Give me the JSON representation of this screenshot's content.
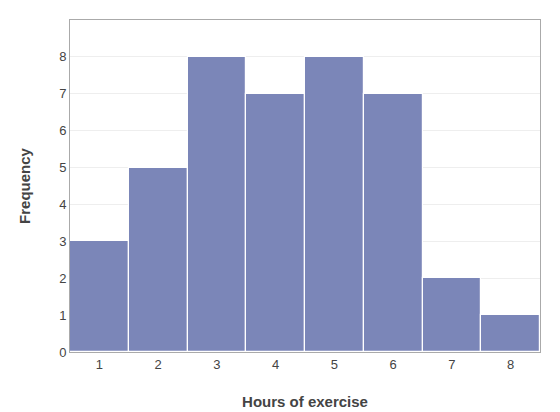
{
  "chart_data": {
    "type": "bar",
    "x": [
      1,
      2,
      3,
      4,
      5,
      6,
      7,
      8
    ],
    "values": [
      3,
      5,
      8,
      7,
      8,
      7,
      2,
      1
    ],
    "color": "#7b86b8",
    "xlabel": "Hours of exercise",
    "ylabel": "Frequency",
    "xlim": [
      0.5,
      8.5
    ],
    "ylim": [
      0,
      9
    ],
    "xticks": [
      1,
      2,
      3,
      4,
      5,
      6,
      7,
      8
    ],
    "yticks": [
      0,
      1,
      2,
      3,
      4,
      5,
      6,
      7,
      8
    ],
    "grid": "y"
  }
}
